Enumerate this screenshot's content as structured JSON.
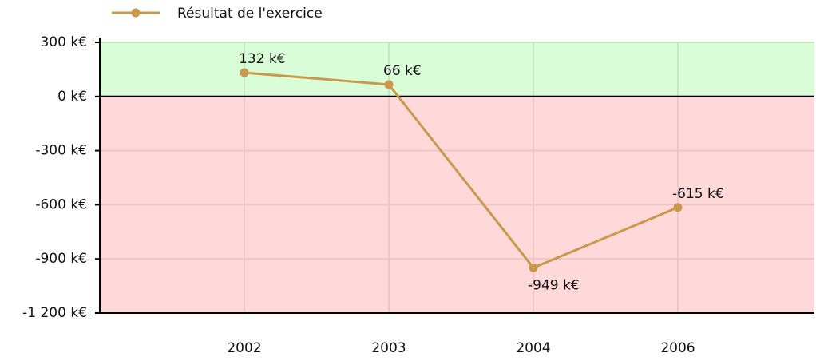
{
  "chart_data": {
    "type": "line",
    "categories": [
      "2002",
      "2003",
      "2004",
      "2006"
    ],
    "series": [
      {
        "name": "Résultat de l'exercice",
        "color": "#c9984b",
        "values": [
          132,
          66,
          -949,
          -615
        ],
        "value_labels": [
          "132 k€",
          "66 k€",
          "-949 k€",
          "-615 k€"
        ]
      }
    ],
    "ylim": [
      -1200,
      300
    ],
    "yticks": [
      {
        "value": 300,
        "label": "300 k€"
      },
      {
        "value": 0,
        "label": "0 k€"
      },
      {
        "value": -300,
        "label": "-300 k€"
      },
      {
        "value": -600,
        "label": "-600 k€"
      },
      {
        "value": -900,
        "label": "-900 k€"
      },
      {
        "value": -1200,
        "label": "-1 200 k€"
      }
    ],
    "grid": true,
    "legend": "top-left",
    "positive_background": "#d9fdd6",
    "negative_background": "#ffd9d9"
  }
}
